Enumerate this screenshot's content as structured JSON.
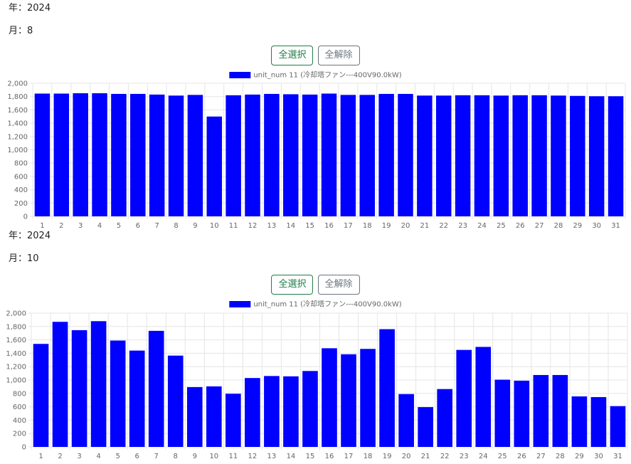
{
  "blocks": [
    {
      "year_label": "年：2024",
      "month_label": "月：8",
      "select_all_label": "全選択",
      "clear_all_label": "全解除"
    },
    {
      "year_label": "年：2024",
      "month_label": "月：10",
      "select_all_label": "全選択",
      "clear_all_label": "全解除"
    }
  ],
  "colors": {
    "bar": "#0000ff",
    "grid": "#e5e5e5",
    "tick": "#666666",
    "select_button": "#1e7e46",
    "clear_button": "#6c757d"
  },
  "chart_data": [
    {
      "type": "bar",
      "legend_position": "top",
      "grid": true,
      "ylim": [
        0,
        2000
      ],
      "yticks": [
        "0",
        "200",
        "400",
        "600",
        "800",
        "1,000",
        "1,200",
        "1,400",
        "1,600",
        "1,800",
        "2,000"
      ],
      "categories": [
        "1",
        "2",
        "3",
        "4",
        "5",
        "6",
        "7",
        "8",
        "9",
        "10",
        "11",
        "12",
        "13",
        "14",
        "15",
        "16",
        "17",
        "18",
        "19",
        "20",
        "21",
        "22",
        "23",
        "24",
        "25",
        "26",
        "27",
        "28",
        "29",
        "30",
        "31"
      ],
      "series": [
        {
          "name": "unit_num 11 (冷却塔ファン---400V90.0kW)",
          "values": [
            1845,
            1845,
            1850,
            1850,
            1840,
            1840,
            1830,
            1815,
            1825,
            1500,
            1820,
            1830,
            1840,
            1835,
            1830,
            1845,
            1825,
            1825,
            1840,
            1840,
            1815,
            1815,
            1820,
            1820,
            1815,
            1820,
            1820,
            1815,
            1810,
            1805,
            1805
          ]
        }
      ]
    },
    {
      "type": "bar",
      "legend_position": "top",
      "grid": true,
      "ylim": [
        0,
        2000
      ],
      "yticks": [
        "0",
        "200",
        "400",
        "600",
        "800",
        "1,000",
        "1,200",
        "1,400",
        "1,600",
        "1,800",
        "2,000"
      ],
      "categories": [
        "1",
        "2",
        "3",
        "4",
        "5",
        "6",
        "7",
        "8",
        "9",
        "10",
        "11",
        "12",
        "13",
        "14",
        "15",
        "16",
        "17",
        "18",
        "19",
        "20",
        "21",
        "22",
        "23",
        "24",
        "25",
        "26",
        "27",
        "28",
        "29",
        "30",
        "31"
      ],
      "series": [
        {
          "name": "unit_num 11 (冷却塔ファン---400V90.0kW)",
          "values": [
            1540,
            1870,
            1745,
            1880,
            1590,
            1440,
            1735,
            1365,
            895,
            905,
            795,
            1030,
            1060,
            1055,
            1135,
            1475,
            1385,
            1465,
            1760,
            790,
            595,
            865,
            1450,
            1495,
            1005,
            990,
            1075,
            1075,
            755,
            745,
            610
          ]
        }
      ]
    }
  ]
}
